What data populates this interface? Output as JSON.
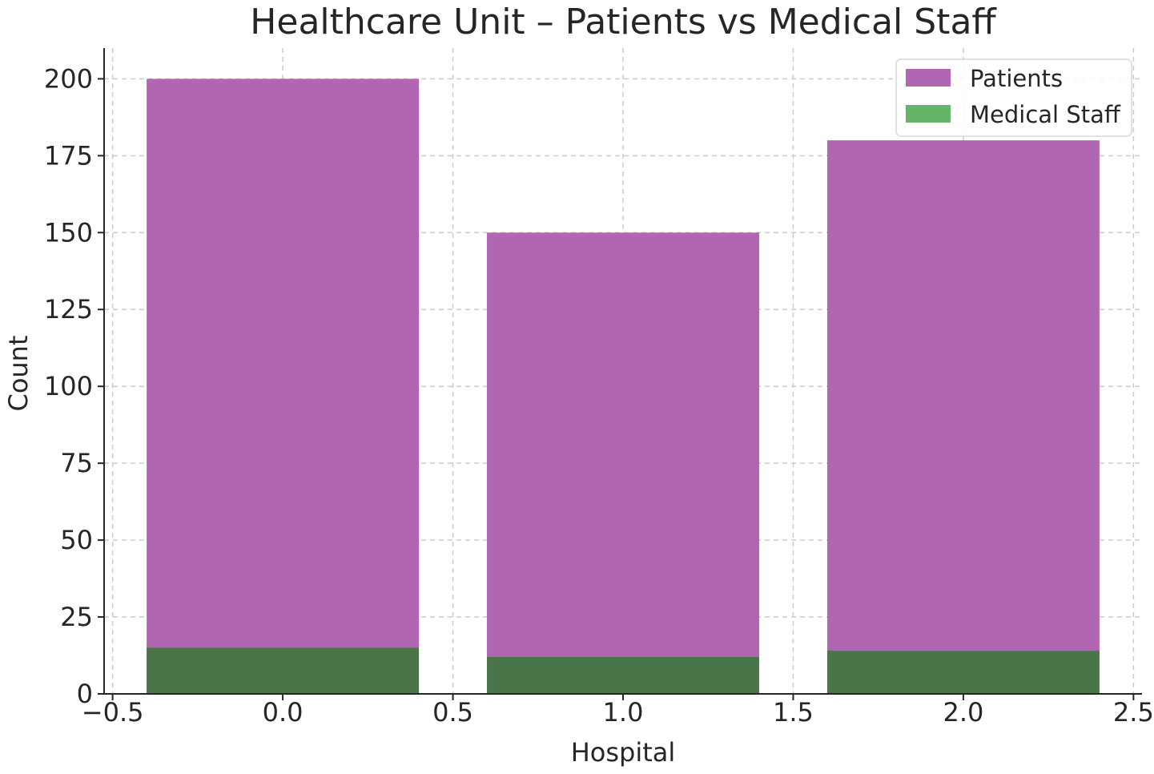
{
  "chart_data": {
    "type": "bar",
    "title": "Healthcare Unit – Patients vs Medical Staff",
    "xlabel": "Hospital",
    "ylabel": "Count",
    "x": [
      0,
      1,
      2
    ],
    "xlim": [
      -0.525,
      2.525
    ],
    "ylim": [
      0,
      210
    ],
    "xticks": [
      -0.5,
      0.0,
      0.5,
      1.0,
      1.5,
      2.0,
      2.5
    ],
    "xtick_labels": [
      "−0.5",
      "0.0",
      "0.5",
      "1.0",
      "1.5",
      "2.0",
      "2.5"
    ],
    "yticks": [
      0,
      25,
      50,
      75,
      100,
      125,
      150,
      175,
      200
    ],
    "ytick_labels": [
      "0",
      "25",
      "50",
      "75",
      "100",
      "125",
      "150",
      "175",
      "200"
    ],
    "bar_width": 0.8,
    "grid": true,
    "legend_position": "top-right",
    "series": [
      {
        "name": "Patients",
        "values": [
          200,
          150,
          180
        ],
        "color": "#b066b0"
      },
      {
        "name": "Medical Staff",
        "values": [
          15,
          12,
          14
        ],
        "color": "#4a7548",
        "legend_color": "#66b466"
      }
    ]
  }
}
